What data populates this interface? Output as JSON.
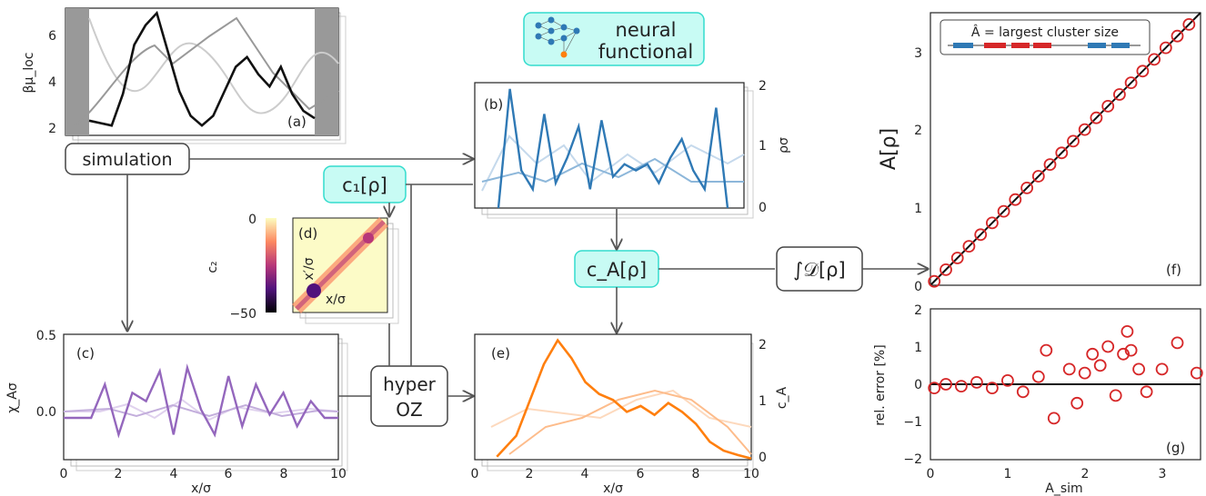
{
  "colors": {
    "a": "#111111",
    "b": "#2f79b5",
    "c": "#9467bd",
    "e": "#ff7f0e",
    "f": "#d62728",
    "arrow": "#555555",
    "cyan": "#c8fbf4",
    "cyanStroke": "#33dccd"
  },
  "icons": {
    "nn": "neural-network-icon"
  },
  "labels": {
    "neural1": "neural",
    "neural2": "functional",
    "simulation": "simulation",
    "c1": "c₁[ρ]",
    "cA": "c_A[ρ]",
    "hyper1": "hyper",
    "hyper2": "OZ",
    "integral": "∫𝒟[ρ]",
    "pa": "(a)",
    "pb": "(b)",
    "pc": "(c)",
    "pd": "(d)",
    "pe": "(e)",
    "pf": "(f)",
    "pg": "(g)",
    "ya": "βμ_loc",
    "yb": "ρσ",
    "yc": "χ_Aσ",
    "yd": "c₂",
    "ye": "c_A",
    "yf": "A[ρ]",
    "yg": "rel. error [%]",
    "xc": "x/σ",
    "xe": "x/σ",
    "xg": "A_sim",
    "dx": "x/σ",
    "dy": "x′/σ",
    "legend": "Â = largest cluster size"
  },
  "ticks": {
    "a_y": [
      "2",
      "4",
      "6"
    ],
    "b_y": [
      "0",
      "1",
      "2"
    ],
    "c_y": [
      "0.0",
      "0.5"
    ],
    "c_x": [
      "0",
      "2",
      "4",
      "6",
      "8",
      "10"
    ],
    "d_cb": [
      "0",
      "−50"
    ],
    "e_y": [
      "0",
      "1",
      "2"
    ],
    "e_x": [
      "0",
      "2",
      "4",
      "6",
      "8",
      "10"
    ],
    "f_y": [
      "0",
      "1",
      "2",
      "3"
    ],
    "g_y": [
      "−2",
      "−1",
      "0",
      "1",
      "2"
    ],
    "g_x": [
      "0",
      "1",
      "2",
      "3"
    ]
  },
  "chart_data": [
    {
      "panel": "a",
      "type": "line",
      "ylabel": "βμ_loc",
      "ylim": [
        1.8,
        7.0
      ],
      "x": [
        0,
        0.5,
        1,
        1.5,
        2,
        2.5,
        3,
        3.5,
        4,
        4.5,
        5,
        5.5,
        6,
        6.5,
        7,
        7.5,
        8,
        8.5,
        9,
        9.5,
        10
      ],
      "series": [
        {
          "name": "",
          "values": [
            2.4,
            2.3,
            2.2,
            3.5,
            5.5,
            6.3,
            6.8,
            5.2,
            3.6,
            2.6,
            2.2,
            2.6,
            3.6,
            4.6,
            5.0,
            4.3,
            3.8,
            4.6,
            3.5,
            2.8,
            2.5
          ]
        }
      ]
    },
    {
      "panel": "b",
      "type": "line",
      "ylabel": "ρσ",
      "ylim": [
        0,
        2
      ],
      "x": [
        0,
        0.5,
        1,
        1.5,
        2,
        2.5,
        3,
        3.5,
        4,
        4.5,
        5,
        5.5,
        6,
        6.5,
        7,
        7.5,
        8,
        8.5,
        9,
        9.5,
        10
      ],
      "series": [
        {
          "name": "",
          "values": [
            0,
            1.9,
            0.6,
            0.3,
            1.5,
            0.4,
            0.8,
            1.3,
            0.3,
            1.4,
            0.5,
            0.7,
            0.6,
            0.7,
            0.4,
            0.8,
            1.1,
            0.6,
            0.3,
            1.6,
            0
          ]
        }
      ]
    },
    {
      "panel": "c",
      "type": "line",
      "ylabel": "χ_Aσ",
      "xlabel": "x/σ",
      "ylim": [
        -0.25,
        0.5
      ],
      "xlim": [
        0,
        10
      ],
      "x": [
        0,
        0.5,
        1,
        1.5,
        2,
        2.5,
        3,
        3.5,
        4,
        4.5,
        5,
        5.5,
        6,
        6.5,
        7,
        7.5,
        8,
        8.5,
        9,
        9.5,
        10
      ],
      "series": [
        {
          "name": "",
          "values": [
            0,
            0,
            0,
            0.2,
            -0.1,
            0.15,
            0.1,
            0.28,
            -0.1,
            0.3,
            0.05,
            -0.1,
            0.25,
            -0.05,
            0.2,
            0.02,
            0.15,
            -0.05,
            0.1,
            0,
            0
          ]
        }
      ]
    },
    {
      "panel": "e",
      "type": "line",
      "ylabel": "c_A",
      "xlabel": "x/σ",
      "ylim": [
        0,
        2.1
      ],
      "xlim": [
        0,
        10
      ],
      "x": [
        0.8,
        1.5,
        2,
        2.5,
        3,
        3.5,
        4,
        4.5,
        5,
        5.5,
        6,
        6.5,
        7,
        7.5,
        8,
        8.5,
        9,
        9.5,
        10
      ],
      "series": [
        {
          "name": "",
          "values": [
            0.05,
            0.4,
            1.0,
            1.6,
            2.0,
            1.7,
            1.3,
            1.1,
            1.0,
            0.8,
            0.9,
            0.75,
            0.95,
            0.8,
            0.6,
            0.3,
            0.15,
            0.08,
            0.02
          ]
        }
      ]
    },
    {
      "panel": "f",
      "type": "scatter",
      "ylabel": "A[ρ]",
      "ylim": [
        0,
        3.5
      ],
      "xlim": [
        0,
        3.5
      ],
      "x": [
        0.05,
        0.2,
        0.35,
        0.5,
        0.65,
        0.8,
        0.95,
        1.1,
        1.25,
        1.4,
        1.55,
        1.7,
        1.85,
        2.0,
        2.15,
        2.3,
        2.45,
        2.6,
        2.75,
        2.9,
        3.05,
        3.2,
        3.35
      ],
      "y": [
        0.05,
        0.2,
        0.35,
        0.5,
        0.65,
        0.8,
        0.95,
        1.1,
        1.25,
        1.4,
        1.55,
        1.7,
        1.85,
        2.0,
        2.15,
        2.3,
        2.45,
        2.6,
        2.75,
        2.9,
        3.05,
        3.2,
        3.35
      ]
    },
    {
      "panel": "g",
      "type": "scatter",
      "ylabel": "rel. error [%]",
      "xlabel": "A_sim",
      "ylim": [
        -2,
        2
      ],
      "xlim": [
        0,
        3.5
      ],
      "x": [
        0.05,
        0.2,
        0.4,
        0.6,
        0.8,
        1.0,
        1.2,
        1.4,
        1.5,
        1.6,
        1.8,
        1.9,
        2.0,
        2.1,
        2.2,
        2.3,
        2.4,
        2.5,
        2.55,
        2.6,
        2.7,
        2.8,
        3.0,
        3.2,
        3.45
      ],
      "y": [
        -0.1,
        0.0,
        -0.05,
        0.05,
        -0.1,
        0.1,
        -0.2,
        0.2,
        0.9,
        -0.9,
        0.4,
        -0.5,
        0.3,
        0.8,
        0.5,
        1.0,
        -0.3,
        0.8,
        1.4,
        0.9,
        0.4,
        -0.2,
        0.4,
        1.1,
        0.3
      ]
    }
  ]
}
